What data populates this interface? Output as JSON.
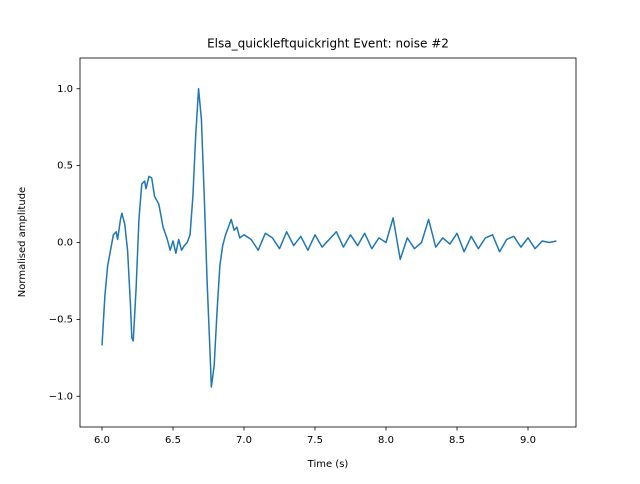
{
  "chart_data": {
    "type": "line",
    "title": "Elsa_quickleftquickright Event: noise #2",
    "x_label": "Time (s)",
    "y_label": "Normalised amplitude",
    "xlim": [
      5.845,
      9.338
    ],
    "ylim": [
      -1.2,
      1.2
    ],
    "xticks": [
      {
        "value": 6,
        "label": "6.0"
      },
      6.5,
      {
        "value": 7,
        "label": "7.0"
      },
      7.5,
      {
        "value": 8,
        "label": "8.0"
      },
      8.5,
      {
        "value": 9,
        "label": "9.0"
      }
    ],
    "yticks": [
      {
        "value": -1,
        "label": "−1.0"
      },
      {
        "value": -0.5,
        "label": "−0.5"
      },
      {
        "value": 0,
        "label": "0.0"
      },
      0.5,
      {
        "value": 1,
        "label": "1.0"
      }
    ],
    "x": [
      6.0,
      6.02,
      6.04,
      6.06,
      6.08,
      6.1,
      6.11,
      6.13,
      6.14,
      6.16,
      6.18,
      6.2,
      6.21,
      6.22,
      6.24,
      6.26,
      6.28,
      6.3,
      6.31,
      6.33,
      6.35,
      6.37,
      6.4,
      6.43,
      6.46,
      6.48,
      6.5,
      6.52,
      6.54,
      6.56,
      6.58,
      6.6,
      6.62,
      6.64,
      6.66,
      6.68,
      6.7,
      6.72,
      6.74,
      6.76,
      6.77,
      6.79,
      6.81,
      6.83,
      6.85,
      6.87,
      6.89,
      6.91,
      6.93,
      6.95,
      6.97,
      7.0,
      7.05,
      7.1,
      7.15,
      7.2,
      7.25,
      7.3,
      7.35,
      7.4,
      7.45,
      7.5,
      7.55,
      7.6,
      7.65,
      7.7,
      7.75,
      7.8,
      7.85,
      7.9,
      7.95,
      8.0,
      8.05,
      8.1,
      8.15,
      8.2,
      8.25,
      8.3,
      8.35,
      8.4,
      8.45,
      8.5,
      8.55,
      8.6,
      8.65,
      8.7,
      8.75,
      8.8,
      8.85,
      8.9,
      8.95,
      9.0,
      9.05,
      9.1,
      9.15,
      9.2
    ],
    "series": [
      {
        "color": "#1f77b4",
        "values": [
          -0.67,
          -0.35,
          -0.15,
          -0.05,
          0.05,
          0.07,
          0.02,
          0.15,
          0.19,
          0.12,
          -0.05,
          -0.4,
          -0.62,
          -0.64,
          -0.3,
          0.15,
          0.38,
          0.4,
          0.35,
          0.43,
          0.42,
          0.3,
          0.25,
          0.1,
          0.02,
          -0.05,
          0.01,
          -0.07,
          0.02,
          -0.05,
          -0.02,
          0.0,
          0.05,
          0.3,
          0.7,
          1.0,
          0.8,
          0.3,
          -0.25,
          -0.7,
          -0.94,
          -0.8,
          -0.45,
          -0.15,
          -0.02,
          0.05,
          0.1,
          0.15,
          0.08,
          0.1,
          0.03,
          0.05,
          0.02,
          -0.05,
          0.06,
          0.03,
          -0.04,
          0.07,
          -0.02,
          0.04,
          -0.05,
          0.05,
          -0.03,
          0.02,
          0.07,
          -0.03,
          0.05,
          -0.02,
          0.06,
          -0.04,
          0.03,
          0.0,
          0.16,
          -0.11,
          0.03,
          -0.04,
          0.0,
          0.15,
          -0.03,
          0.03,
          -0.01,
          0.06,
          -0.06,
          0.04,
          -0.04,
          0.03,
          0.05,
          -0.06,
          0.02,
          0.04,
          -0.03,
          0.03,
          -0.04,
          0.01,
          0.0,
          0.01
        ]
      }
    ]
  }
}
